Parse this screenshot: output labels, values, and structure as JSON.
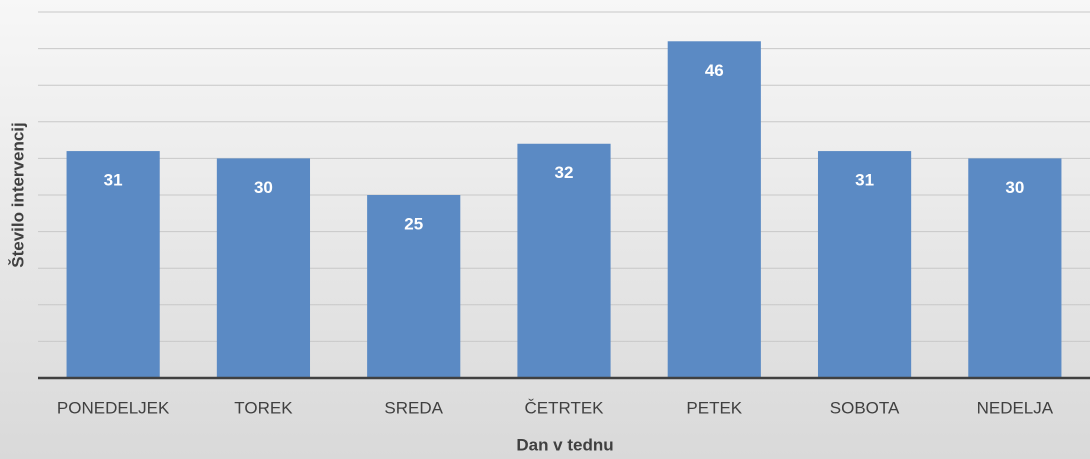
{
  "chart_data": {
    "type": "bar",
    "x_label": "Dan v tednu",
    "y_label": "Število intervencij",
    "categories": [
      "PONEDELJEK",
      "TOREK",
      "SREDA",
      "ČETRTEK",
      "PETEK",
      "SOBOTA",
      "NEDELJA"
    ],
    "values": [
      31,
      30,
      25,
      32,
      46,
      31,
      30
    ],
    "color": "#5b8ac4",
    "ylim": [
      0,
      50
    ],
    "yticks": [
      0,
      5,
      10,
      15,
      20,
      25,
      30,
      35,
      40,
      45,
      50
    ],
    "grid": true
  }
}
